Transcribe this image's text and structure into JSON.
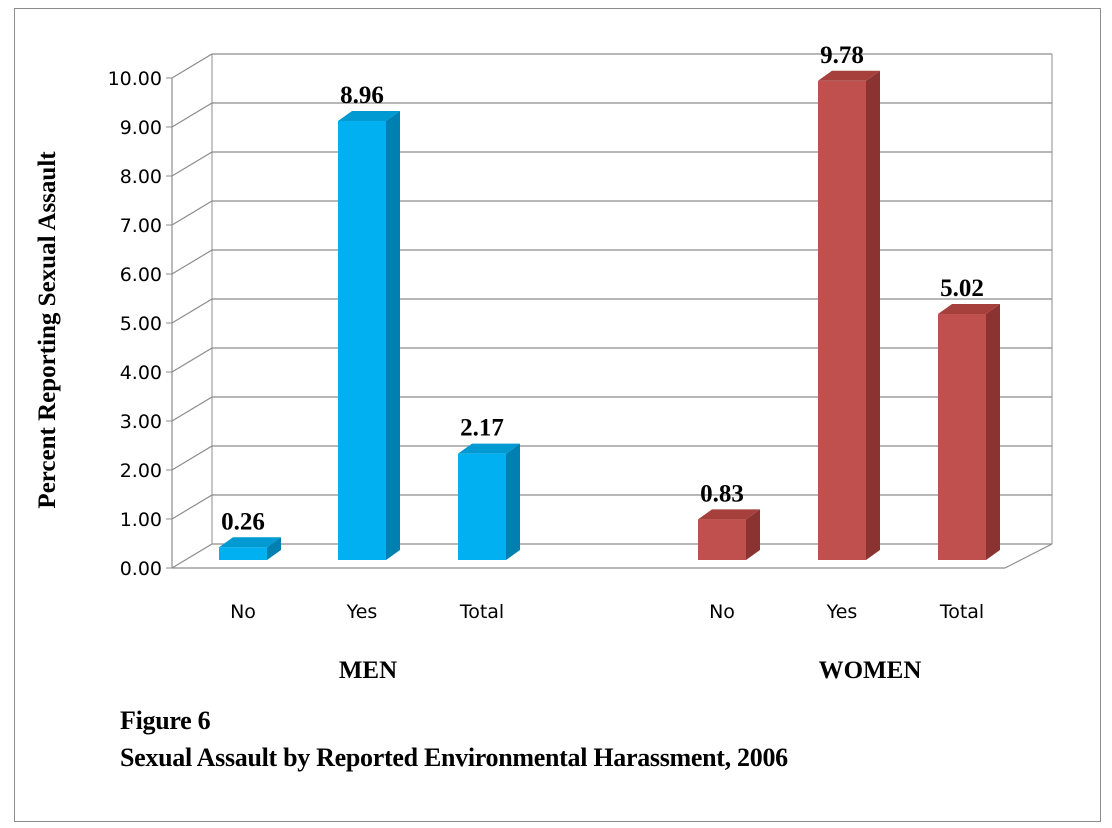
{
  "chart_data": {
    "type": "bar",
    "ylabel": "Percent Reporting Sexual Assault",
    "ylim": [
      0,
      10
    ],
    "yticks": [
      "0.00",
      "1.00",
      "2.00",
      "3.00",
      "4.00",
      "5.00",
      "6.00",
      "7.00",
      "8.00",
      "9.00",
      "10.00"
    ],
    "grid": true,
    "groups": [
      {
        "name": "MEN",
        "color": "#00b0f0",
        "side_color": "#0080b0",
        "top_color": "#009ad2",
        "categories": [
          "No",
          "Yes",
          "Total"
        ],
        "values": [
          0.26,
          8.96,
          2.17
        ],
        "labels": [
          "0.26",
          "8.96",
          "2.17"
        ]
      },
      {
        "name": "WOMEN",
        "color": "#c0504d",
        "side_color": "#8b3331",
        "top_color": "#a5403d",
        "categories": [
          "No",
          "Yes",
          "Total"
        ],
        "values": [
          0.83,
          9.78,
          5.02
        ],
        "labels": [
          "0.83",
          "9.78",
          "5.02"
        ]
      }
    ]
  },
  "caption": {
    "figure": "Figure  6",
    "title": "Sexual Assault by Reported Environmental Harassment, 2006"
  }
}
